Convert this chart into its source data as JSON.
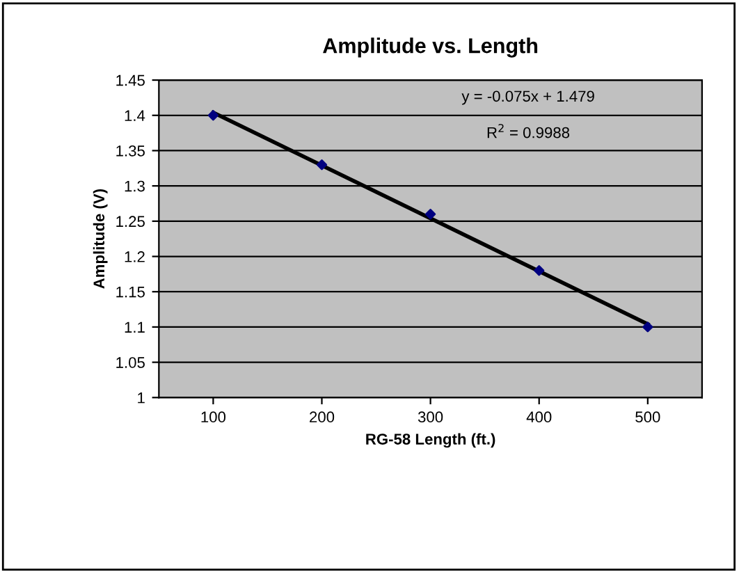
{
  "chart_data": {
    "type": "scatter",
    "title": "Amplitude vs. Length",
    "xlabel": "RG-58 Length (ft.)",
    "ylabel": "Amplitude (V)",
    "x": [
      100,
      200,
      300,
      400,
      500
    ],
    "series": [
      {
        "color": "#000080",
        "marker": "diamond",
        "values": [
          1.4,
          1.33,
          1.26,
          1.18,
          1.1
        ]
      },
      {
        "type": "line",
        "color": "#000000",
        "x": [
          100,
          500
        ],
        "values": [
          1.404,
          1.104
        ]
      }
    ],
    "xlim": [
      50,
      550
    ],
    "xticks": [
      100,
      200,
      300,
      400,
      500
    ],
    "ylim": [
      1,
      1.45
    ],
    "yticks": [
      1,
      1.05,
      1.1,
      1.15,
      1.2,
      1.25,
      1.3,
      1.35,
      1.4,
      1.45
    ],
    "grid": "y",
    "legend": false,
    "annotations": [
      "y = -0.075x + 1.479",
      "R$^{2}$ = 0.9988"
    ]
  }
}
